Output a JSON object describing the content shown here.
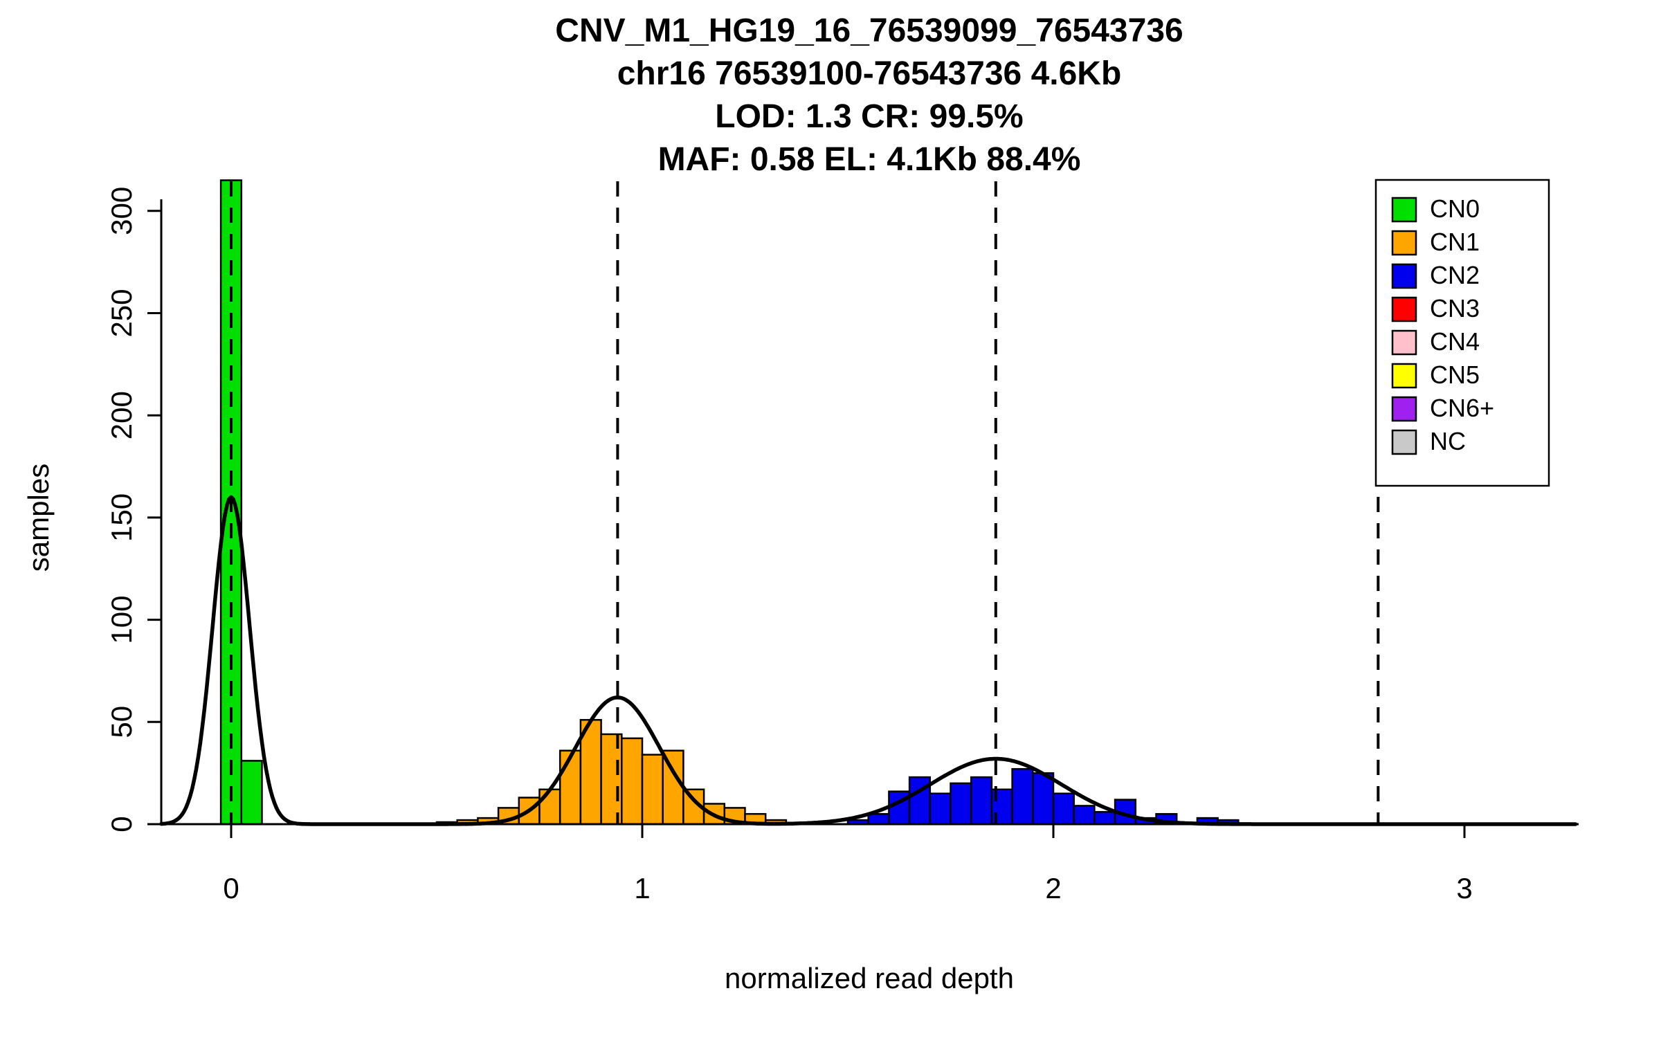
{
  "chart_data": {
    "type": "histogram",
    "title_lines": [
      "CNV_M1_HG19_16_76539099_76543736",
      "chr16 76539100-76543736 4.6Kb",
      "LOD: 1.3 CR: 99.5%",
      "MAF: 0.58 EL: 4.1Kb 88.4%"
    ],
    "xlabel": "normalized read depth",
    "ylabel": "samples",
    "x_ticks": [
      0,
      1,
      2,
      3
    ],
    "y_ticks": [
      0,
      50,
      100,
      150,
      200,
      250,
      300
    ],
    "xlim": [
      -0.17,
      3.28
    ],
    "ylim": [
      0,
      315
    ],
    "bin_width": 0.05,
    "grid": false,
    "legend_position": "top-right",
    "dashed_mean_lines_x": [
      0,
      0.94,
      1.86,
      2.79
    ],
    "clusters": [
      {
        "name": "CN0",
        "color": "#00DF00",
        "gaussian": {
          "mean": 0,
          "amplitude": 160,
          "sigma": 0.045
        },
        "bins": [
          [
            0,
            315
          ],
          [
            0.05,
            31
          ]
        ]
      },
      {
        "name": "CN1",
        "color": "#FFA500",
        "gaussian": {
          "mean": 0.94,
          "amplitude": 62,
          "sigma": 0.102
        },
        "bins": [
          [
            0.525,
            1
          ],
          [
            0.575,
            2
          ],
          [
            0.625,
            3
          ],
          [
            0.675,
            8
          ],
          [
            0.725,
            13
          ],
          [
            0.775,
            17
          ],
          [
            0.825,
            36
          ],
          [
            0.875,
            51
          ],
          [
            0.925,
            44
          ],
          [
            0.975,
            42
          ],
          [
            1.025,
            34
          ],
          [
            1.075,
            36
          ],
          [
            1.125,
            17
          ],
          [
            1.175,
            10
          ],
          [
            1.225,
            8
          ],
          [
            1.275,
            5
          ],
          [
            1.325,
            2
          ]
        ]
      },
      {
        "name": "CN2",
        "color": "#0000EE",
        "gaussian": {
          "mean": 1.86,
          "amplitude": 32,
          "sigma": 0.16
        },
        "bins": [
          [
            1.525,
            2
          ],
          [
            1.575,
            5
          ],
          [
            1.625,
            16
          ],
          [
            1.675,
            23
          ],
          [
            1.725,
            15
          ],
          [
            1.775,
            20
          ],
          [
            1.825,
            23
          ],
          [
            1.875,
            17
          ],
          [
            1.925,
            27
          ],
          [
            1.975,
            25
          ],
          [
            2.025,
            15
          ],
          [
            2.075,
            9
          ],
          [
            2.125,
            6
          ],
          [
            2.175,
            12
          ],
          [
            2.225,
            3
          ],
          [
            2.275,
            5
          ],
          [
            2.375,
            3
          ],
          [
            2.425,
            2
          ]
        ]
      }
    ],
    "legend": [
      {
        "label": "CN0",
        "color": "#00DF00"
      },
      {
        "label": "CN1",
        "color": "#FFA500"
      },
      {
        "label": "CN2",
        "color": "#0000EE"
      },
      {
        "label": "CN3",
        "color": "#FF0000"
      },
      {
        "label": "CN4",
        "color": "#FFC0CB"
      },
      {
        "label": "CN5",
        "color": "#FFFF00"
      },
      {
        "label": "CN6+",
        "color": "#A020F0"
      },
      {
        "label": "NC",
        "color": "#C9C9C9"
      }
    ],
    "curve_color": "#000000",
    "axis_color": "#000000"
  }
}
